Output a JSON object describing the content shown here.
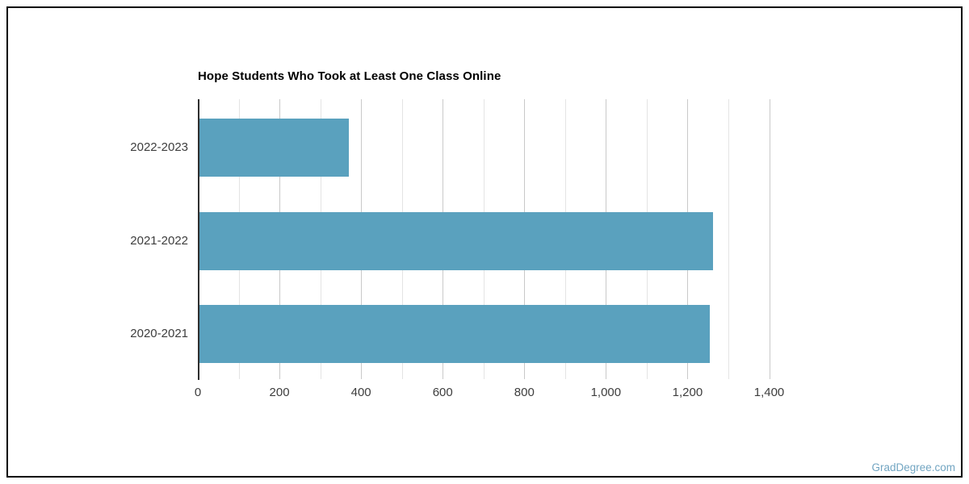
{
  "watermark": {
    "text": "GradDegree.com",
    "color": "#72a5c2"
  },
  "chart_data": {
    "type": "bar",
    "orientation": "horizontal",
    "title": "Hope Students Who Took at Least One Class Online",
    "categories": [
      "2022-2023",
      "2021-2022",
      "2020-2021"
    ],
    "values": [
      367,
      1258,
      1250
    ],
    "xlabel": "",
    "ylabel": "",
    "xlim": [
      0,
      1400
    ],
    "x_major_ticks": [
      0,
      200,
      400,
      600,
      800,
      1000,
      1200,
      1400
    ],
    "x_tick_labels": [
      "0",
      "200",
      "400",
      "600",
      "800",
      "1,000",
      "1,200",
      "1,400"
    ],
    "x_minor_step": 100,
    "grid": true,
    "legend": false,
    "colors": {
      "bar": "#5aa1be",
      "axis": "#2f2f2f",
      "grid_major": "#c9c9c9",
      "grid_minor": "#e4e4e4",
      "tick_label": "#3d3d3d",
      "title": "#000000"
    }
  }
}
